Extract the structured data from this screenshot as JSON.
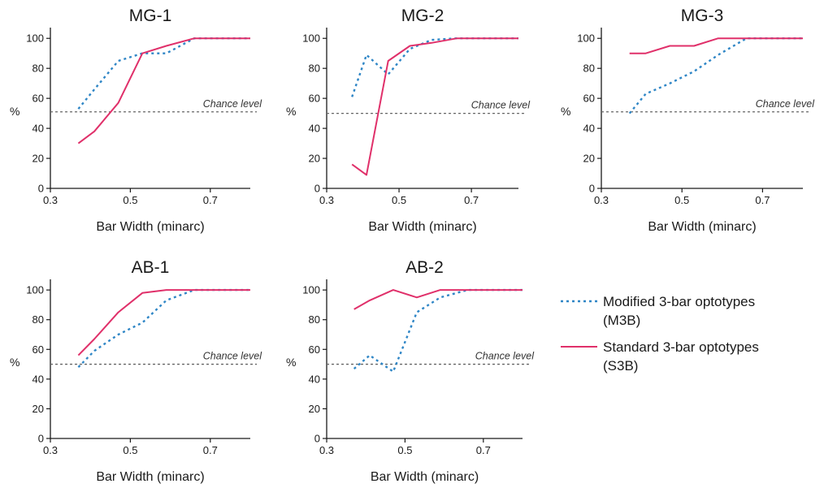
{
  "colors": {
    "m3b": "#2f86c6",
    "s3b": "#e0306a",
    "chance": "#666666",
    "axis": "#1a1a1a"
  },
  "legend": {
    "m3b_label_line1": "Modified 3-bar optotypes",
    "m3b_label_line2": "(M3B)",
    "s3b_label_line1": "Standard 3-bar optotypes",
    "s3b_label_line2": "(S3B)"
  },
  "chart_data": [
    {
      "type": "line",
      "title": "MG-1",
      "xlabel": "Bar Width (minarc)",
      "ylabel": "%",
      "xlim": [
        0.3,
        0.8
      ],
      "ylim": [
        0,
        105
      ],
      "xticks": [
        "0.3",
        "0.5",
        "0.7"
      ],
      "yticks": [
        "0",
        "20",
        "40",
        "60",
        "80",
        "100"
      ],
      "chance_level": 51,
      "chance_label": "Chance level",
      "series": [
        {
          "key": "m3b",
          "style": "dotted",
          "x": [
            0.37,
            0.41,
            0.47,
            0.53,
            0.59,
            0.66,
            0.8
          ],
          "y": [
            53,
            66,
            85,
            90,
            90,
            100,
            100
          ]
        },
        {
          "key": "s3b",
          "style": "solid",
          "x": [
            0.37,
            0.41,
            0.47,
            0.53,
            0.59,
            0.66,
            0.8
          ],
          "y": [
            30,
            38,
            57,
            90,
            95,
            100,
            100
          ]
        }
      ]
    },
    {
      "type": "line",
      "title": "MG-2",
      "xlabel": "Bar Width (minarc)",
      "ylabel": "%",
      "xlim": [
        0.3,
        0.83
      ],
      "ylim": [
        0,
        105
      ],
      "xticks": [
        "0.3",
        "0.5",
        "0.7"
      ],
      "yticks": [
        "0",
        "20",
        "40",
        "60",
        "80",
        "100"
      ],
      "chance_level": 50,
      "chance_label": "Chance level",
      "series": [
        {
          "key": "m3b",
          "style": "dotted",
          "x": [
            0.37,
            0.41,
            0.47,
            0.53,
            0.59,
            0.66,
            0.83
          ],
          "y": [
            61,
            89,
            76,
            93,
            99,
            100,
            100
          ]
        },
        {
          "key": "s3b",
          "style": "solid",
          "x": [
            0.37,
            0.41,
            0.47,
            0.53,
            0.59,
            0.66,
            0.83
          ],
          "y": [
            16,
            9,
            85,
            95,
            97,
            100,
            100
          ]
        }
      ]
    },
    {
      "type": "line",
      "title": "MG-3",
      "xlabel": "Bar Width (minarc)",
      "ylabel": "%",
      "xlim": [
        0.3,
        0.8
      ],
      "ylim": [
        0,
        105
      ],
      "xticks": [
        "0.3",
        "0.5",
        "0.7"
      ],
      "yticks": [
        "0",
        "20",
        "40",
        "60",
        "80",
        "100"
      ],
      "chance_level": 51,
      "chance_label": "Chance level",
      "series": [
        {
          "key": "m3b",
          "style": "dotted",
          "x": [
            0.37,
            0.41,
            0.47,
            0.53,
            0.59,
            0.66,
            0.8
          ],
          "y": [
            50,
            63,
            70,
            78,
            89,
            100,
            100
          ]
        },
        {
          "key": "s3b",
          "style": "solid",
          "x": [
            0.37,
            0.41,
            0.47,
            0.53,
            0.59,
            0.66,
            0.8
          ],
          "y": [
            90,
            90,
            95,
            95,
            100,
            100,
            100
          ]
        }
      ]
    },
    {
      "type": "line",
      "title": "AB-1",
      "xlabel": "Bar Width (minarc)",
      "ylabel": "%",
      "xlim": [
        0.3,
        0.8
      ],
      "ylim": [
        0,
        105
      ],
      "xticks": [
        "0.3",
        "0.5",
        "0.7"
      ],
      "yticks": [
        "0",
        "20",
        "40",
        "60",
        "80",
        "100"
      ],
      "chance_level": 50,
      "chance_label": "Chance level",
      "series": [
        {
          "key": "m3b",
          "style": "dotted",
          "x": [
            0.37,
            0.41,
            0.47,
            0.53,
            0.59,
            0.66,
            0.8
          ],
          "y": [
            48,
            59,
            70,
            78,
            93,
            100,
            100
          ]
        },
        {
          "key": "s3b",
          "style": "solid",
          "x": [
            0.37,
            0.41,
            0.47,
            0.53,
            0.59,
            0.66,
            0.8
          ],
          "y": [
            56,
            67,
            85,
            98,
            100,
            100,
            100
          ]
        }
      ]
    },
    {
      "type": "line",
      "title": "AB-2",
      "xlabel": "Bar Width (minarc)",
      "ylabel": "%",
      "xlim": [
        0.3,
        0.8
      ],
      "ylim": [
        0,
        105
      ],
      "xticks": [
        "0.3",
        "0.5",
        "0.7"
      ],
      "yticks": [
        "0",
        "20",
        "40",
        "60",
        "80",
        "100"
      ],
      "chance_level": 50,
      "chance_label": "Chance level",
      "series": [
        {
          "key": "m3b",
          "style": "dotted",
          "x": [
            0.37,
            0.41,
            0.47,
            0.53,
            0.59,
            0.66,
            0.8
          ],
          "y": [
            47,
            56,
            45,
            85,
            95,
            100,
            100
          ]
        },
        {
          "key": "s3b",
          "style": "solid",
          "x": [
            0.37,
            0.41,
            0.47,
            0.53,
            0.59,
            0.66,
            0.8
          ],
          "y": [
            87,
            93,
            100,
            95,
            100,
            100,
            100
          ]
        }
      ]
    }
  ]
}
